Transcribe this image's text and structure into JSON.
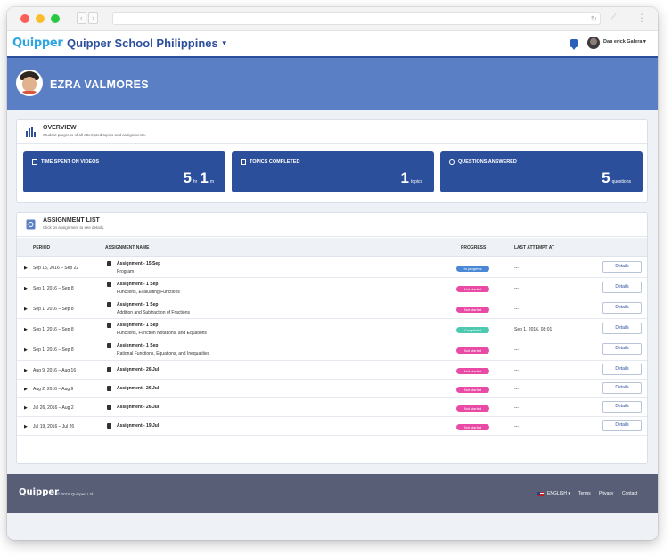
{
  "app": {
    "logo": "Quipper",
    "school_name": "Quipper School Philippines",
    "user_name": "Dan erick Galera ▾"
  },
  "student": {
    "name": "EZRA VALMORES"
  },
  "overview": {
    "title": "OVERVIEW",
    "subtitle": "Student progress of all attempted topics and assignments.",
    "stats": [
      {
        "label": "TIME SPENT ON VIDEOS",
        "icon": "video-icon",
        "parts": [
          [
            "5",
            "hr"
          ],
          [
            "1",
            "m"
          ]
        ]
      },
      {
        "label": "TOPICS COMPLETED",
        "icon": "check-icon",
        "parts": [
          [
            "1",
            "topics"
          ]
        ]
      },
      {
        "label": "QUESTIONS ANSWERED",
        "icon": "question-icon",
        "parts": [
          [
            "5",
            "questions"
          ]
        ]
      }
    ]
  },
  "assignments": {
    "title": "ASSIGNMENT LIST",
    "subtitle": "Click on assignment to see details.",
    "columns": {
      "period": "PERIOD",
      "name": "ASSIGNMENT NAME",
      "progress": "PROGRESS",
      "last": "LAST ATTEMPT AT"
    },
    "rows": [
      {
        "period": "Sep 15, 2016 – Sep 22",
        "name": "Assignment - 15 Sep",
        "sub": "Program",
        "status": "In progress",
        "last": "---",
        "details": "Details"
      },
      {
        "period": "Sep 1, 2016 – Sep 8",
        "name": "Assignment - 1 Sep",
        "sub": "Functions, Evaluating Functions",
        "status": "Not started",
        "last": "---",
        "details": "Details"
      },
      {
        "period": "Sep 1, 2016 – Sep 8",
        "name": "Assignment - 1 Sep",
        "sub": "Addition and Subtraction of Fractions",
        "status": "Not started",
        "last": "---",
        "details": "Details"
      },
      {
        "period": "Sep 1, 2016 – Sep 8",
        "name": "Assignment - 1 Sep",
        "sub": "Functions, Function Notations, and Equations",
        "status": "Completed",
        "last": "Sep 1, 2016, 08:01",
        "details": "Details"
      },
      {
        "period": "Sep 1, 2016 – Sep 8",
        "name": "Assignment - 1 Sep",
        "sub": "Rational Functions, Equations, and Inequalities",
        "status": "Not started",
        "last": "---",
        "details": "Details"
      },
      {
        "period": "Aug 9, 2016 – Aug 16",
        "name": "Assignment - 26 Jul",
        "sub": "",
        "status": "Not started",
        "last": "---",
        "details": "Details"
      },
      {
        "period": "Aug 2, 2016 – Aug 9",
        "name": "Assignment - 26 Jul",
        "sub": "",
        "status": "Not started",
        "last": "---",
        "details": "Details"
      },
      {
        "period": "Jul 26, 2016 – Aug 2",
        "name": "Assignment - 26 Jul",
        "sub": "",
        "status": "Not started",
        "last": "---",
        "details": "Details"
      },
      {
        "period": "Jul 19, 2016 – Jul 26",
        "name": "Assignment - 19 Jul",
        "sub": "",
        "status": "Not started",
        "last": "---",
        "details": "Details"
      }
    ]
  },
  "status_colors": {
    "In progress": "#4a87d6",
    "Not started": "#e84aa6",
    "Completed": "#4cc9b0"
  },
  "footer": {
    "logo": "Quipper",
    "copyright": "© 2018 Quipper, Ltd.",
    "language": "ENGLISH ▾",
    "links": [
      "Terms",
      "Privacy",
      "Contact"
    ]
  }
}
